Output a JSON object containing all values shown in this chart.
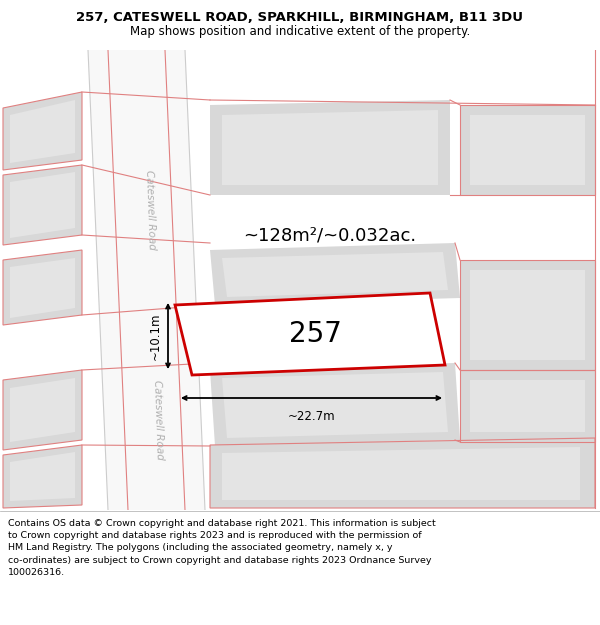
{
  "title_line1": "257, CATESWELL ROAD, SPARKHILL, BIRMINGHAM, B11 3DU",
  "title_line2": "Map shows position and indicative extent of the property.",
  "footer_text": "Contains OS data © Crown copyright and database right 2021. This information is subject\nto Crown copyright and database rights 2023 and is reproduced with the permission of\nHM Land Registry. The polygons (including the associated geometry, namely x, y\nco-ordinates) are subject to Crown copyright and database rights 2023 Ordnance Survey\n100026316.",
  "area_text": "~128m²/~0.032ac.",
  "property_label": "257",
  "width_label": "~22.7m",
  "height_label": "~10.1m",
  "map_bg": "#eeeeee",
  "road_color": "#f8f8f8",
  "block_outer": "#d8d8d8",
  "block_inner": "#e4e4e4",
  "property_fill": "#ffffff",
  "property_edge": "#cc0000",
  "red_line": "#e08080",
  "road_text_color": "#b0b0b0",
  "figsize": [
    6.0,
    6.25
  ],
  "dpi": 100
}
